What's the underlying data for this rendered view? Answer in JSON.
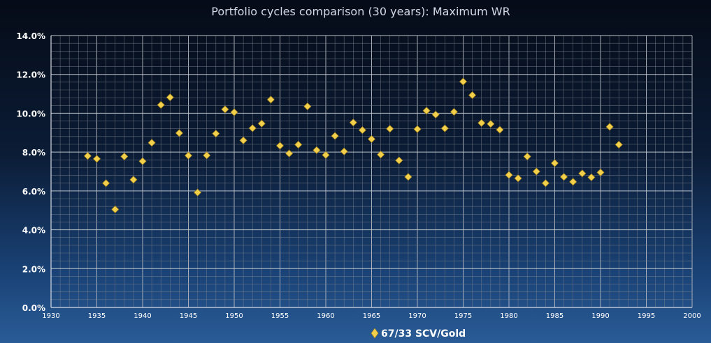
{
  "chart_data": {
    "type": "scatter",
    "title": "Portfolio cycles comparison (30 years): Maximum WR",
    "xlabel": "",
    "ylabel": "",
    "xlim": [
      1930,
      2000
    ],
    "ylim": [
      0,
      0.14
    ],
    "x_ticks": [
      "1930",
      "1935",
      "1940",
      "1945",
      "1950",
      "1955",
      "1960",
      "1965",
      "1970",
      "1975",
      "1980",
      "1985",
      "1990",
      "1995",
      "2000"
    ],
    "y_ticks": [
      "0.0%",
      "2.0%",
      "4.0%",
      "6.0%",
      "8.0%",
      "10.0%",
      "12.0%",
      "14.0%"
    ],
    "grid": true,
    "legend_position": "bottom-center",
    "series": [
      {
        "name": "67/33 SCV/Gold",
        "color": "#f2d04b",
        "marker": "diamond",
        "x": [
          1934,
          1935,
          1936,
          1937,
          1938,
          1939,
          1940,
          1941,
          1942,
          1943,
          1944,
          1945,
          1946,
          1947,
          1948,
          1949,
          1950,
          1951,
          1952,
          1953,
          1954,
          1955,
          1956,
          1957,
          1958,
          1959,
          1960,
          1961,
          1962,
          1963,
          1964,
          1965,
          1966,
          1967,
          1968,
          1969,
          1970,
          1971,
          1972,
          1973,
          1974,
          1975,
          1976,
          1977,
          1978,
          1979,
          1980,
          1981,
          1982,
          1983,
          1984,
          1985,
          1986,
          1987,
          1988,
          1989,
          1990,
          1991,
          1992
        ],
        "y": [
          0.078,
          0.0765,
          0.064,
          0.0505,
          0.0777,
          0.0658,
          0.0753,
          0.0848,
          0.1043,
          0.1082,
          0.0898,
          0.0782,
          0.0592,
          0.0783,
          0.0895,
          0.102,
          0.1005,
          0.086,
          0.0923,
          0.0947,
          0.107,
          0.0833,
          0.0793,
          0.0838,
          0.1035,
          0.081,
          0.0785,
          0.0883,
          0.0803,
          0.0952,
          0.0913,
          0.0867,
          0.0787,
          0.092,
          0.0757,
          0.0672,
          0.0918,
          0.1013,
          0.0993,
          0.0922,
          0.1007,
          0.1163,
          0.1093,
          0.095,
          0.0945,
          0.0915,
          0.0682,
          0.0665,
          0.0777,
          0.07,
          0.064,
          0.0743,
          0.0672,
          0.0647,
          0.069,
          0.067,
          0.0695,
          0.093,
          0.0838
        ]
      }
    ]
  }
}
